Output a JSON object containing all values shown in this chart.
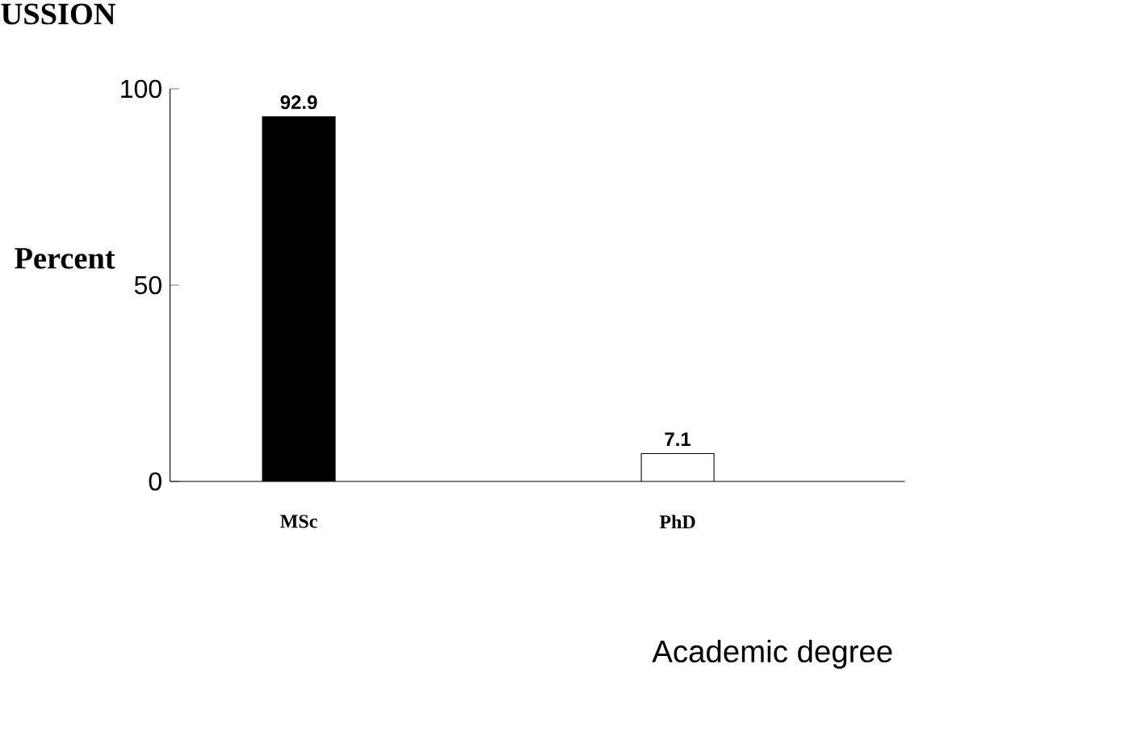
{
  "chart_data": {
    "type": "bar",
    "xlabel": "Academic degree",
    "ylabel": "Percent",
    "categories": [
      "MSc",
      "PhD"
    ],
    "values": [
      92.9,
      7.1
    ],
    "colors": [
      "#000000",
      "#ffffff"
    ],
    "ylim": [
      0,
      100
    ],
    "yticks": [
      0,
      50,
      100
    ],
    "data_labels": true,
    "annotations": [
      "USSION"
    ]
  }
}
